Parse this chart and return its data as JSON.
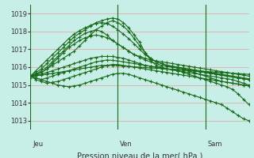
{
  "title": "",
  "xlabel": "Pression niveau de la mer( hPa )",
  "bg_color": "#c8eee8",
  "grid_color": "#e8a0a0",
  "line_color": "#1a6b1a",
  "ylim": [
    1012.5,
    1019.5
  ],
  "yticks": [
    1013,
    1014,
    1015,
    1016,
    1017,
    1018,
    1019
  ],
  "day_labels": [
    "Jeu",
    "Ven",
    "Sam"
  ],
  "day_positions": [
    0,
    16,
    32
  ],
  "n_points": 41,
  "series": [
    [
      1015.5,
      1015.6,
      1015.7,
      1015.9,
      1016.1,
      1016.3,
      1016.5,
      1016.7,
      1016.9,
      1017.2,
      1017.5,
      1017.8,
      1018.1,
      1018.3,
      1018.5,
      1018.6,
      1018.5,
      1018.3,
      1018.0,
      1017.6,
      1017.2,
      1016.8,
      1016.5,
      1016.3,
      1016.2,
      1016.1,
      1016.05,
      1016.0,
      1015.9,
      1015.8,
      1015.7,
      1015.6,
      1015.5,
      1015.4,
      1015.3,
      1015.2,
      1015.15,
      1015.1,
      1015.05,
      1015.0,
      1014.95
    ],
    [
      1015.5,
      1015.7,
      1015.9,
      1016.2,
      1016.5,
      1016.8,
      1017.1,
      1017.4,
      1017.7,
      1017.9,
      1018.1,
      1018.3,
      1018.5,
      1018.6,
      1018.7,
      1018.75,
      1018.7,
      1018.5,
      1018.2,
      1017.8,
      1017.4,
      1016.8,
      1016.4,
      1016.1,
      1016.0,
      1015.9,
      1015.85,
      1015.8,
      1015.7,
      1015.6,
      1015.5,
      1015.4,
      1015.3,
      1015.2,
      1015.1,
      1015.0,
      1014.9,
      1014.75,
      1014.5,
      1014.2,
      1013.9
    ],
    [
      1015.5,
      1015.55,
      1015.6,
      1015.7,
      1015.8,
      1015.9,
      1016.0,
      1016.1,
      1016.2,
      1016.3,
      1016.4,
      1016.5,
      1016.55,
      1016.6,
      1016.6,
      1016.6,
      1016.55,
      1016.5,
      1016.4,
      1016.3,
      1016.2,
      1016.1,
      1016.05,
      1016.0,
      1015.95,
      1015.9,
      1015.88,
      1015.86,
      1015.84,
      1015.82,
      1015.8,
      1015.75,
      1015.7,
      1015.65,
      1015.6,
      1015.55,
      1015.5,
      1015.45,
      1015.4,
      1015.35,
      1015.3
    ],
    [
      1015.5,
      1015.52,
      1015.55,
      1015.6,
      1015.65,
      1015.7,
      1015.75,
      1015.8,
      1015.85,
      1015.9,
      1015.95,
      1016.0,
      1016.05,
      1016.1,
      1016.1,
      1016.1,
      1016.08,
      1016.06,
      1016.04,
      1016.02,
      1016.0,
      1015.98,
      1015.96,
      1015.94,
      1015.92,
      1015.9,
      1015.88,
      1015.86,
      1015.84,
      1015.82,
      1015.8,
      1015.78,
      1015.76,
      1015.74,
      1015.72,
      1015.7,
      1015.68,
      1015.66,
      1015.64,
      1015.62,
      1015.6
    ],
    [
      1015.4,
      1015.6,
      1015.8,
      1016.0,
      1016.3,
      1016.6,
      1016.9,
      1017.2,
      1017.5,
      1017.7,
      1017.9,
      1018.0,
      1018.1,
      1018.0,
      1017.8,
      1017.5,
      1017.3,
      1017.1,
      1016.9,
      1016.7,
      1016.6,
      1016.5,
      1016.4,
      1016.35,
      1016.3,
      1016.25,
      1016.2,
      1016.15,
      1016.1,
      1016.05,
      1016.0,
      1015.95,
      1015.9,
      1015.85,
      1015.8,
      1015.75,
      1015.7,
      1015.65,
      1015.6,
      1015.55,
      1015.5
    ],
    [
      1015.5,
      1015.8,
      1016.1,
      1016.4,
      1016.7,
      1017.0,
      1017.3,
      1017.6,
      1017.85,
      1018.05,
      1018.2,
      1018.35,
      1018.45,
      1018.5,
      1018.45,
      1018.3,
      1018.1,
      1017.85,
      1017.6,
      1017.3,
      1017.0,
      1016.7,
      1016.5,
      1016.3,
      1016.2,
      1016.1,
      1016.05,
      1016.0,
      1015.95,
      1015.9,
      1015.85,
      1015.8,
      1015.75,
      1015.7,
      1015.65,
      1015.6,
      1015.55,
      1015.5,
      1015.45,
      1015.4,
      1015.35
    ],
    [
      1015.5,
      1015.4,
      1015.3,
      1015.4,
      1015.5,
      1015.6,
      1015.7,
      1015.8,
      1015.9,
      1016.0,
      1016.1,
      1016.2,
      1016.3,
      1016.35,
      1016.4,
      1016.38,
      1016.35,
      1016.3,
      1016.25,
      1016.2,
      1016.15,
      1016.1,
      1016.05,
      1016.0,
      1015.95,
      1015.9,
      1015.85,
      1015.8,
      1015.75,
      1015.7,
      1015.65,
      1015.6,
      1015.55,
      1015.5,
      1015.45,
      1015.4,
      1015.35,
      1015.3,
      1015.2,
      1015.1,
      1015.0
    ],
    [
      1015.5,
      1015.6,
      1015.7,
      1015.9,
      1016.2,
      1016.5,
      1016.8,
      1017.1,
      1017.3,
      1017.5,
      1017.65,
      1017.75,
      1017.8,
      1017.75,
      1017.65,
      1017.5,
      1017.3,
      1017.1,
      1016.9,
      1016.7,
      1016.55,
      1016.4,
      1016.3,
      1016.2,
      1016.1,
      1016.05,
      1016.0,
      1015.95,
      1015.9,
      1015.85,
      1015.8,
      1015.75,
      1015.7,
      1015.65,
      1015.6,
      1015.55,
      1015.5,
      1015.45,
      1015.4,
      1015.35,
      1015.3
    ],
    [
      1015.5,
      1015.3,
      1015.2,
      1015.1,
      1015.15,
      1015.2,
      1015.3,
      1015.4,
      1015.5,
      1015.6,
      1015.7,
      1015.8,
      1015.9,
      1016.0,
      1016.1,
      1016.15,
      1016.15,
      1016.1,
      1016.05,
      1016.0,
      1015.95,
      1015.9,
      1015.85,
      1015.8,
      1015.75,
      1015.7,
      1015.65,
      1015.6,
      1015.55,
      1015.5,
      1015.45,
      1015.4,
      1015.35,
      1015.3,
      1015.25,
      1015.2,
      1015.15,
      1015.1,
      1015.05,
      1015.0,
      1014.95
    ],
    [
      1015.5,
      1015.4,
      1015.3,
      1015.2,
      1015.1,
      1015.0,
      1014.95,
      1014.9,
      1014.95,
      1015.0,
      1015.1,
      1015.2,
      1015.3,
      1015.4,
      1015.5,
      1015.6,
      1015.65,
      1015.65,
      1015.6,
      1015.5,
      1015.4,
      1015.3,
      1015.2,
      1015.1,
      1015.0,
      1014.9,
      1014.8,
      1014.7,
      1014.6,
      1014.5,
      1014.4,
      1014.3,
      1014.2,
      1014.1,
      1014.0,
      1013.9,
      1013.7,
      1013.5,
      1013.3,
      1013.1,
      1013.0
    ]
  ]
}
